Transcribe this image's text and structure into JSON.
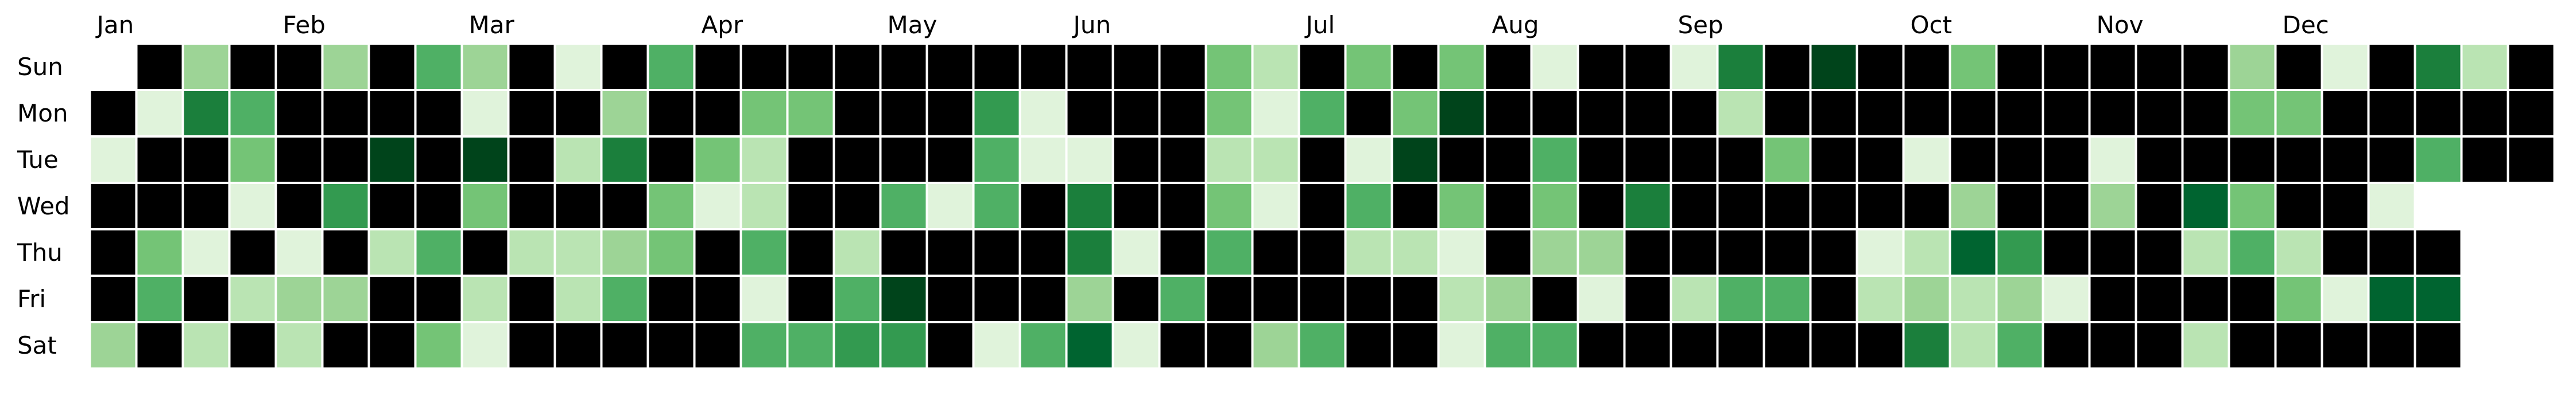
{
  "chart_data": {
    "type": "heatmap",
    "title": "",
    "xlabel": "",
    "ylabel": "",
    "month_labels": [
      {
        "label": "Jan",
        "week": 0
      },
      {
        "label": "Feb",
        "week": 4
      },
      {
        "label": "Mar",
        "week": 8
      },
      {
        "label": "Apr",
        "week": 13
      },
      {
        "label": "May",
        "week": 17
      },
      {
        "label": "Jun",
        "week": 21
      },
      {
        "label": "Jul",
        "week": 26
      },
      {
        "label": "Aug",
        "week": 30
      },
      {
        "label": "Sep",
        "week": 34
      },
      {
        "label": "Oct",
        "week": 39
      },
      {
        "label": "Nov",
        "week": 43
      },
      {
        "label": "Dec",
        "week": 47
      }
    ],
    "day_labels": [
      "Sun",
      "Mon",
      "Tue",
      "Wed",
      "Thu",
      "Fri",
      "Sat"
    ],
    "color_scale": {
      "0": "#000000",
      "1": "#e0f3db",
      "2": "#bae4b3",
      "3": "#9dd496",
      "4": "#74c476",
      "5": "#4fb065",
      "6": "#339a50",
      "7": "#1b7f3c",
      "8": "#006430",
      "9": "#00441b"
    },
    "empty_cells": "none",
    "grid": false,
    "legend": "none",
    "values": [
      [
        null,
        0,
        3,
        0,
        0,
        3,
        0,
        5,
        3,
        0,
        1,
        0,
        5,
        0,
        0,
        0,
        0,
        0,
        0,
        0,
        0,
        0,
        0,
        0,
        4,
        2,
        0,
        4,
        0,
        4,
        0,
        1,
        0,
        0,
        1,
        7,
        0,
        9,
        0,
        0,
        4,
        0,
        0,
        0,
        0,
        0,
        3,
        0,
        1,
        0,
        7,
        2,
        0
      ],
      [
        0,
        1,
        7,
        5,
        0,
        0,
        0,
        0,
        1,
        0,
        0,
        3,
        0,
        0,
        4,
        4,
        0,
        0,
        0,
        6,
        1,
        0,
        0,
        0,
        4,
        1,
        5,
        0,
        4,
        9,
        0,
        0,
        0,
        0,
        0,
        2,
        0,
        0,
        0,
        0,
        0,
        0,
        0,
        0,
        0,
        0,
        4,
        4,
        0,
        0,
        0,
        0,
        0
      ],
      [
        1,
        0,
        0,
        4,
        0,
        0,
        9,
        0,
        9,
        0,
        2,
        7,
        0,
        4,
        2,
        0,
        0,
        0,
        0,
        5,
        1,
        1,
        0,
        0,
        2,
        2,
        0,
        1,
        9,
        0,
        0,
        5,
        0,
        0,
        0,
        0,
        4,
        0,
        0,
        1,
        0,
        0,
        0,
        1,
        0,
        0,
        0,
        0,
        0,
        0,
        5,
        0,
        0
      ],
      [
        0,
        0,
        0,
        1,
        0,
        6,
        0,
        0,
        4,
        0,
        0,
        0,
        4,
        1,
        2,
        0,
        0,
        5,
        1,
        5,
        0,
        7,
        0,
        0,
        4,
        1,
        0,
        5,
        0,
        4,
        0,
        4,
        0,
        7,
        0,
        0,
        0,
        0,
        0,
        0,
        3,
        0,
        0,
        3,
        0,
        8,
        4,
        0,
        0,
        1,
        null,
        null,
        null
      ],
      [
        0,
        4,
        1,
        0,
        1,
        0,
        2,
        5,
        0,
        2,
        2,
        3,
        4,
        0,
        5,
        0,
        2,
        0,
        0,
        0,
        0,
        7,
        1,
        0,
        5,
        0,
        0,
        2,
        2,
        1,
        0,
        3,
        3,
        0,
        0,
        0,
        0,
        0,
        1,
        2,
        8,
        6,
        0,
        0,
        0,
        2,
        5,
        2,
        0,
        0,
        0,
        null,
        null
      ],
      [
        0,
        5,
        0,
        2,
        3,
        3,
        0,
        0,
        2,
        0,
        2,
        5,
        0,
        0,
        1,
        0,
        5,
        9,
        0,
        0,
        0,
        3,
        0,
        5,
        0,
        0,
        0,
        0,
        0,
        2,
        3,
        0,
        1,
        0,
        2,
        5,
        5,
        0,
        2,
        3,
        2,
        3,
        1,
        0,
        0,
        0,
        0,
        4,
        1,
        8,
        8,
        null,
        null
      ],
      [
        3,
        0,
        2,
        0,
        2,
        0,
        0,
        4,
        1,
        0,
        0,
        0,
        0,
        0,
        5,
        5,
        6,
        6,
        0,
        1,
        5,
        8,
        1,
        0,
        0,
        3,
        5,
        0,
        0,
        1,
        5,
        5,
        0,
        0,
        0,
        0,
        0,
        0,
        0,
        7,
        2,
        5,
        0,
        0,
        0,
        2,
        0,
        0,
        0,
        0,
        0,
        null,
        null
      ]
    ]
  }
}
